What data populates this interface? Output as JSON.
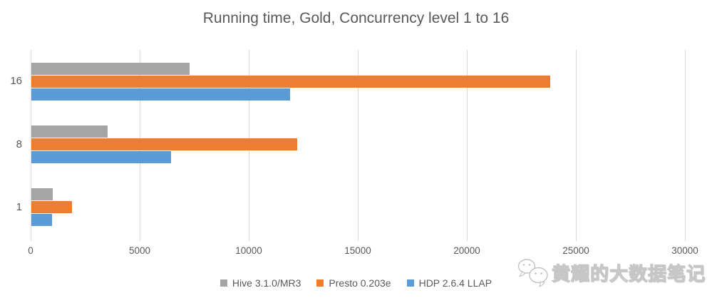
{
  "chart_data": {
    "type": "bar",
    "orientation": "horizontal",
    "title": "Running time, Gold, Concurrency level 1 to 16",
    "categories": [
      "16",
      "8",
      "1"
    ],
    "series": [
      {
        "name": "Hive 3.1.0/MR3",
        "color": "#A5A5A5",
        "values": [
          7250,
          3500,
          970
        ]
      },
      {
        "name": "Presto 0.203e",
        "color": "#ED7D31",
        "values": [
          23800,
          12200,
          1850
        ]
      },
      {
        "name": "HDP 2.6.4 LLAP",
        "color": "#5B9BD5",
        "values": [
          11850,
          6400,
          940
        ]
      }
    ],
    "xlim": [
      0,
      30000
    ],
    "x_ticks": [
      0,
      5000,
      10000,
      15000,
      20000,
      25000,
      30000
    ],
    "x_tick_labels": [
      "0",
      "5000",
      "10000",
      "15000",
      "20000",
      "25000",
      "30000"
    ],
    "legend_position": "bottom",
    "grid": "vertical",
    "gridline_color": "#d9d9d9",
    "axis_label_color": "#595959",
    "title_color": "#595959"
  },
  "watermark": {
    "icon": "wechat-icon",
    "text": "黄耀的大数据笔记"
  }
}
